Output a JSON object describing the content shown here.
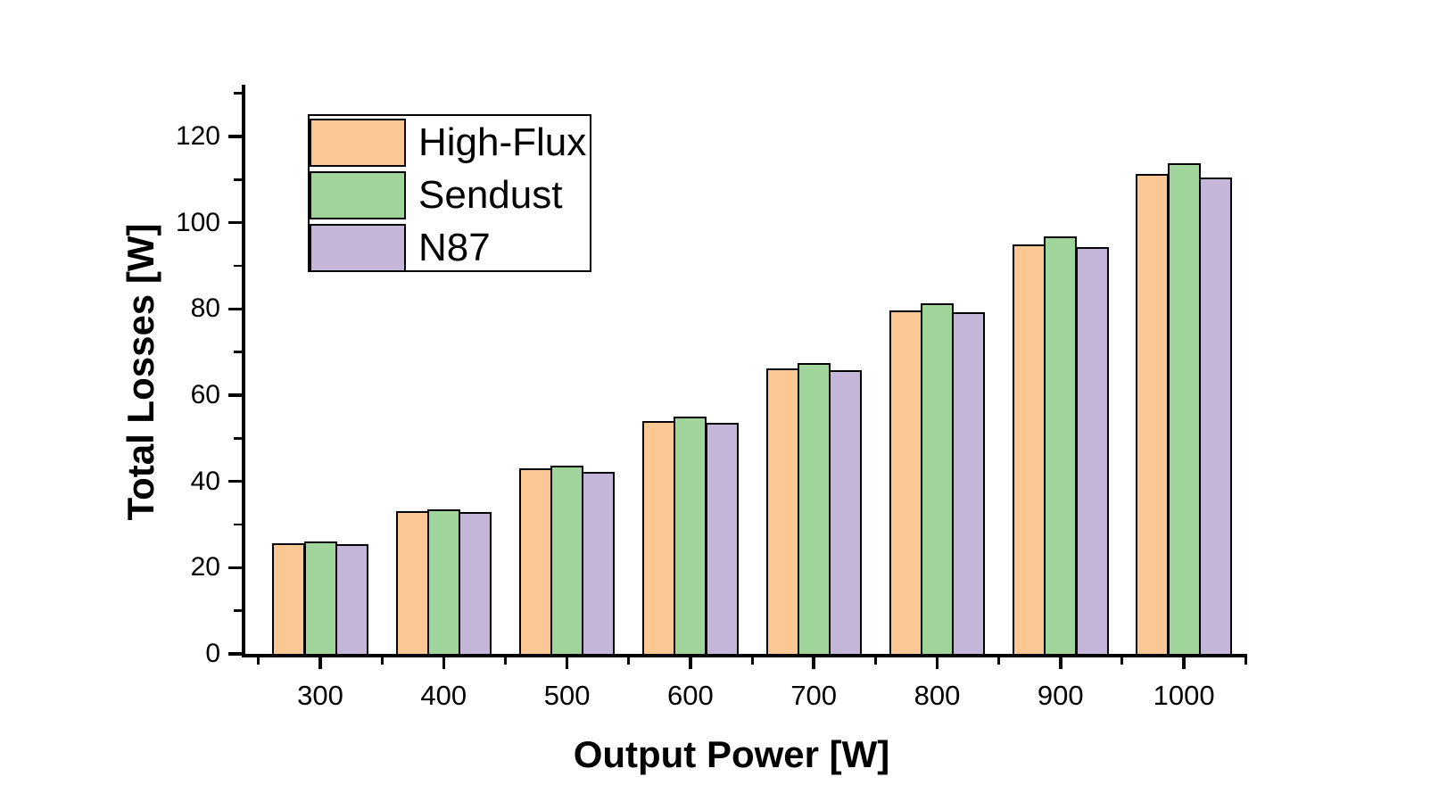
{
  "chart_data": {
    "type": "bar",
    "title": "",
    "xlabel": "Output Power [W]",
    "ylabel": "Total Losses [W]",
    "categories": [
      "300",
      "400",
      "500",
      "600",
      "700",
      "800",
      "900",
      "1000"
    ],
    "series": [
      {
        "name": "High-Flux",
        "color": "#FBC794",
        "values": [
          25.7,
          33.1,
          43.1,
          54.0,
          66.2,
          79.7,
          95.0,
          111.4
        ]
      },
      {
        "name": "Sendust",
        "color": "#9FD49B",
        "values": [
          26.0,
          33.6,
          43.6,
          55.0,
          67.4,
          81.3,
          96.8,
          113.8
        ]
      },
      {
        "name": "N87",
        "color": "#C4B6D9",
        "values": [
          25.4,
          32.8,
          42.3,
          53.5,
          65.8,
          79.3,
          94.3,
          110.5
        ]
      }
    ],
    "ylim": [
      0,
      132
    ],
    "yticks": [
      0,
      20,
      40,
      60,
      80,
      100,
      120
    ],
    "y_minor_ticks": [
      10,
      30,
      50,
      70,
      90,
      110,
      130
    ],
    "legend_position": "top-left",
    "grid": false,
    "bar_border_color": "#000000",
    "axis_color": "#000000"
  }
}
